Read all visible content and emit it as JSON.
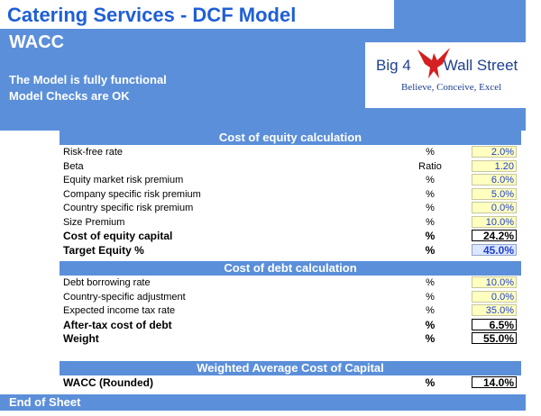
{
  "header": {
    "title": "Catering Services - DCF Model",
    "subtitle": "WACC",
    "status": [
      "The Model is fully functional",
      "Model Checks are OK"
    ]
  },
  "logo": {
    "name_left": "Big 4",
    "name_right": "Wall Street",
    "tagline": "Believe, Conceive, Excel"
  },
  "sections": [
    {
      "title": "Cost of equity calculation",
      "rows": [
        {
          "label": "Risk-free rate",
          "unit": "%",
          "value": "2.0%"
        },
        {
          "label": "Beta",
          "unit": "Ratio",
          "value": "1.20"
        },
        {
          "label": "Equity market risk premium",
          "unit": "%",
          "value": "6.0%"
        },
        {
          "label": "Company specific risk premium",
          "unit": "%",
          "value": "5.0%"
        },
        {
          "label": "Country specific risk premium",
          "unit": "%",
          "value": "0.0%"
        },
        {
          "label": "Size Premium",
          "unit": "%",
          "value": "10.0%"
        },
        {
          "label": "Cost of equity capital",
          "unit": "%",
          "value": "24.2%"
        },
        {
          "label": "Target Equity %",
          "unit": "%",
          "value": "45.0%"
        }
      ]
    },
    {
      "title": "Cost of debt calculation",
      "rows": [
        {
          "label": "Debt borrowing rate",
          "unit": "%",
          "value": "10.0%"
        },
        {
          "label": "Country-specific adjustment",
          "unit": "%",
          "value": "0.0%"
        },
        {
          "label": "Expected income tax rate",
          "unit": "%",
          "value": "35.0%"
        },
        {
          "label": "After-tax cost of debt",
          "unit": "%",
          "value": "6.5%"
        },
        {
          "label": "Weight",
          "unit": "%",
          "value": "55.0%"
        }
      ]
    },
    {
      "title": "Weighted Average Cost of Capital",
      "rows": [
        {
          "label": "WACC (Rounded)",
          "unit": "%",
          "value": "14.0%"
        }
      ]
    }
  ],
  "footer": "End of Sheet"
}
